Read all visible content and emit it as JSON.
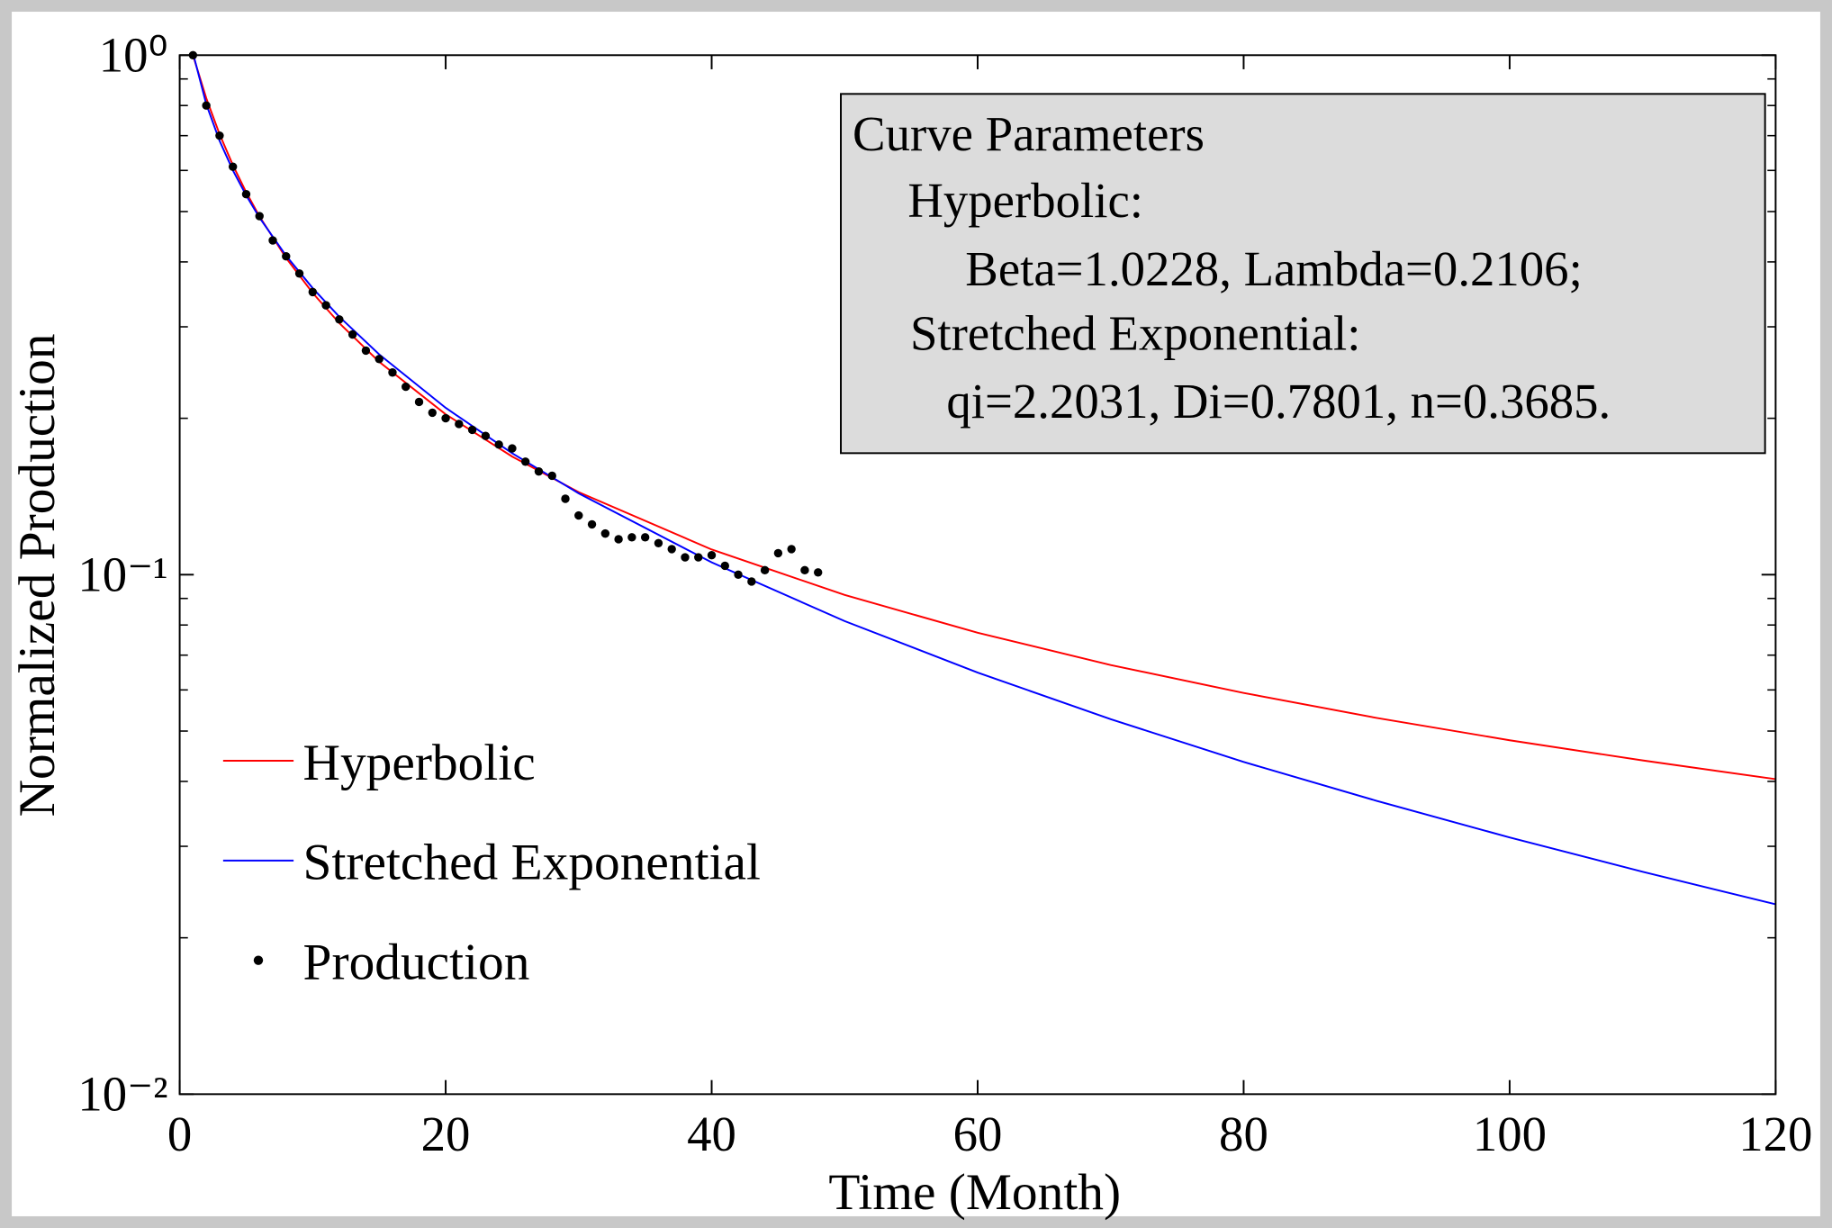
{
  "chart_data": {
    "type": "line",
    "xlabel": "Time (Month)",
    "ylabel": "Normalized Production",
    "xlim": [
      0,
      120
    ],
    "xticks": [
      0,
      20,
      40,
      60,
      80,
      100,
      120
    ],
    "ylim": [
      0.01,
      1
    ],
    "yscale": "log",
    "yticks": [
      {
        "value": 1,
        "label": "10⁰"
      },
      {
        "value": 0.1,
        "label": "10⁻¹"
      },
      {
        "value": 0.01,
        "label": "10⁻²"
      }
    ],
    "yminorticks": [
      0.02,
      0.03,
      0.04,
      0.05,
      0.06,
      0.07,
      0.08,
      0.09,
      0.2,
      0.3,
      0.4,
      0.5,
      0.6,
      0.7,
      0.8,
      0.9
    ],
    "legend": "lower left",
    "annotation": {
      "lines": [
        "Curve Parameters",
        "Hyperbolic:",
        "Beta=1.0228, Lambda=0.2106;",
        "Stretched Exponential:",
        "qi=2.2031, Di=0.7801, n=0.3685."
      ],
      "location": "upper right"
    },
    "series": [
      {
        "name": "Hyperbolic",
        "color": "#ff0000",
        "style": "line",
        "x": [
          1,
          2,
          3,
          4,
          5,
          6,
          8,
          10,
          12,
          15,
          20,
          25,
          30,
          40,
          50,
          60,
          70,
          80,
          90,
          100,
          110,
          120
        ],
        "values": [
          1,
          0.8264,
          0.7045,
          0.6143,
          0.5447,
          0.4894,
          0.407,
          0.3486,
          0.305,
          0.2569,
          0.2036,
          0.1688,
          0.1442,
          0.1118,
          0.0914,
          0.0773,
          0.067,
          0.0592,
          0.053,
          0.048,
          0.0439,
          0.0404
        ]
      },
      {
        "name": "Stretched Exponential",
        "color": "#0000ff",
        "style": "line",
        "x": [
          1,
          2,
          3,
          4,
          5,
          6,
          8,
          10,
          12,
          15,
          20,
          25,
          30,
          40,
          50,
          60,
          70,
          80,
          90,
          100,
          110,
          120
        ],
        "values": [
          1.0098,
          0.8047,
          0.6841,
          0.6004,
          0.5371,
          0.4868,
          0.4111,
          0.3561,
          0.3137,
          0.2655,
          0.2095,
          0.1713,
          0.1434,
          0.1056,
          0.0814,
          0.0648,
          0.0527,
          0.0436,
          0.0367,
          0.0312,
          0.0268,
          0.0232
        ]
      },
      {
        "name": "Production",
        "color": "#000000",
        "style": "marker",
        "x": [
          1,
          2,
          3,
          4,
          5,
          6,
          7,
          8,
          9,
          10,
          11,
          12,
          13,
          14,
          15,
          16,
          17,
          18,
          19,
          20,
          21,
          22,
          23,
          24,
          25,
          26,
          27,
          28,
          29,
          30,
          31,
          32,
          33,
          34,
          35,
          36,
          37,
          38,
          39,
          40,
          41,
          42,
          43,
          44,
          45,
          46,
          47,
          48
        ],
        "values": [
          1.0,
          0.8,
          0.7,
          0.61,
          0.54,
          0.49,
          0.44,
          0.41,
          0.38,
          0.35,
          0.33,
          0.31,
          0.29,
          0.27,
          0.26,
          0.245,
          0.23,
          0.215,
          0.205,
          0.2,
          0.195,
          0.19,
          0.185,
          0.178,
          0.175,
          0.165,
          0.158,
          0.155,
          0.14,
          0.13,
          0.125,
          0.12,
          0.117,
          0.118,
          0.118,
          0.115,
          0.112,
          0.108,
          0.108,
          0.109,
          0.104,
          0.1,
          0.097,
          0.102,
          0.11,
          0.112,
          0.102,
          0.101
        ]
      }
    ]
  }
}
